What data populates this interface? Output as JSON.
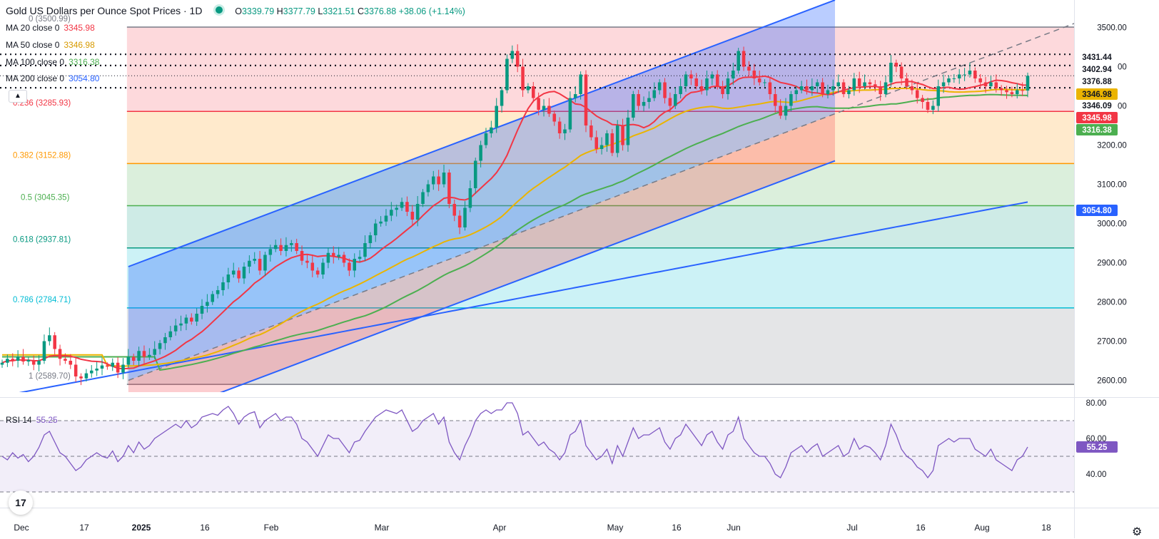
{
  "header": {
    "title": "Gold US Dollars per Ounce Spot Prices · 1D",
    "open_k": "O",
    "open": "3339.79",
    "high_k": "H",
    "high": "3377.79",
    "low_k": "L",
    "low": "3321.51",
    "close_k": "C",
    "close": "3376.88",
    "change": "+38.06 (+1.14%)"
  },
  "moving_averages": [
    {
      "name": "MA 20 close 0",
      "value": "3345.98",
      "color": "#f23645"
    },
    {
      "name": "MA 50 close 0",
      "value": "3346.98",
      "color": "#ebb400"
    },
    {
      "name": "MA 100 close 0",
      "value": "3316.38",
      "color": "#4caf50"
    },
    {
      "name": "MA 200 close 0",
      "value": "3054.80",
      "color": "#2962ff"
    }
  ],
  "rsi": {
    "name": "RSI 14",
    "value": "55.25",
    "color": "#7e57c2"
  },
  "icons": {
    "collapse": "chevron-up-icon",
    "logo": "tradingview-logo-icon",
    "settings": "gear-icon"
  },
  "chart_data": {
    "type": "candlestick",
    "title": "Gold US Dollars per Ounce Spot Prices · 1D",
    "y_ticks": [
      "3500.00",
      "3400.00",
      "3300.00",
      "3200.00",
      "3100.00",
      "3000.00",
      "2900.00",
      "2800.00",
      "2700.00",
      "2600.00"
    ],
    "y_range": [
      2570,
      3570
    ],
    "x_ticks": [
      "Dec",
      "17",
      "2025",
      "16",
      "Feb",
      "Mar",
      "Apr",
      "May",
      "16",
      "Jun",
      "Jul",
      "16",
      "Aug",
      "18"
    ],
    "fib_levels": [
      {
        "ratio": "0",
        "label": "0 (3500.99)",
        "value": 3500.99,
        "line": "#787b86",
        "fill": "#f7525f"
      },
      {
        "ratio": "0.236",
        "label": "0.236 (3285.93)",
        "value": 3285.93,
        "line": "#f23645",
        "fill": "#ff9800"
      },
      {
        "ratio": "0.382",
        "label": "0.382 (3152.88)",
        "value": 3152.88,
        "line": "#ff9800",
        "fill": "#4caf50"
      },
      {
        "ratio": "0.5",
        "label": "0.5 (3045.35)",
        "value": 3045.35,
        "line": "#4caf50",
        "fill": "#089981"
      },
      {
        "ratio": "0.618",
        "label": "0.618 (2937.81)",
        "value": 2937.81,
        "line": "#089981",
        "fill": "#00bcd4"
      },
      {
        "ratio": "0.786",
        "label": "0.786 (2784.71)",
        "value": 2784.71,
        "line": "#00bcd4",
        "fill": "#787b86"
      },
      {
        "ratio": "1",
        "label": "1 (2589.70)",
        "value": 2589.7,
        "line": "#787b86",
        "fill": null
      }
    ],
    "dotted_levels": [
      3431.44,
      3402.94,
      3346.09
    ],
    "price_labels": [
      {
        "text": "3431.44",
        "value": 3431.44,
        "bg": "#ffffff",
        "fg": "#131722"
      },
      {
        "text": "3402.94",
        "value": 3402.94,
        "bg": "#ffffff",
        "fg": "#131722"
      },
      {
        "text": "3376.88",
        "value": 3376.88,
        "bg": "#ffffff",
        "fg": "#131722"
      },
      {
        "text": "3346.98",
        "value": 3346.98,
        "bg": "#ebb400",
        "fg": "#131722"
      },
      {
        "text": "3346.09",
        "value": 3346.09,
        "bg": "#ffffff",
        "fg": "#131722"
      },
      {
        "text": "3345.98",
        "value": 3345.98,
        "bg": "#f23645",
        "fg": "#ffffff"
      },
      {
        "text": "3316.38",
        "value": 3316.38,
        "bg": "#4caf50",
        "fg": "#ffffff"
      },
      {
        "text": "3054.80",
        "value": 3054.8,
        "bg": "#2962ff",
        "fg": "#ffffff"
      }
    ],
    "closes": [
      2645,
      2655,
      2650,
      2660,
      2648,
      2652,
      2640,
      2650,
      2700,
      2715,
      2680,
      2655,
      2650,
      2640,
      2610,
      2605,
      2618,
      2625,
      2630,
      2638,
      2635,
      2645,
      2620,
      2640,
      2660,
      2650,
      2675,
      2660,
      2665,
      2680,
      2695,
      2710,
      2725,
      2740,
      2745,
      2760,
      2750,
      2770,
      2790,
      2800,
      2820,
      2830,
      2850,
      2870,
      2880,
      2860,
      2890,
      2905,
      2910,
      2880,
      2920,
      2935,
      2945,
      2930,
      2945,
      2950,
      2930,
      2905,
      2900,
      2880,
      2870,
      2900,
      2925,
      2915,
      2920,
      2900,
      2880,
      2910,
      2915,
      2950,
      2970,
      3000,
      3005,
      3020,
      3035,
      3040,
      3055,
      3030,
      3010,
      3050,
      3080,
      3100,
      3120,
      3100,
      3130,
      3050,
      3020,
      2990,
      3040,
      3090,
      3160,
      3200,
      3230,
      3245,
      3300,
      3340,
      3420,
      3440,
      3400,
      3340,
      3350,
      3320,
      3290,
      3300,
      3280,
      3260,
      3230,
      3240,
      3320,
      3330,
      3380,
      3250,
      3220,
      3190,
      3200,
      3230,
      3180,
      3250,
      3200,
      3270,
      3330,
      3300,
      3310,
      3320,
      3340,
      3360,
      3320,
      3300,
      3330,
      3350,
      3380,
      3370,
      3350,
      3340,
      3370,
      3380,
      3350,
      3330,
      3370,
      3390,
      3440,
      3400,
      3390,
      3370,
      3360,
      3360,
      3330,
      3300,
      3275,
      3300,
      3330,
      3340,
      3350,
      3340,
      3350,
      3360,
      3330,
      3340,
      3350,
      3360,
      3330,
      3340,
      3370,
      3350,
      3360,
      3355,
      3350,
      3330,
      3360,
      3410,
      3400,
      3370,
      3350,
      3340,
      3320,
      3310,
      3290,
      3300,
      3350,
      3360,
      3370,
      3370,
      3380,
      3380,
      3390,
      3370,
      3360,
      3350,
      3360,
      3345,
      3340,
      3335,
      3330,
      3340,
      3339,
      3376.88
    ],
    "rsi_values": [
      50,
      48,
      52,
      49,
      51,
      47,
      50,
      55,
      62,
      64,
      58,
      52,
      50,
      46,
      42,
      44,
      48,
      50,
      52,
      50,
      49,
      53,
      47,
      50,
      56,
      52,
      58,
      54,
      56,
      60,
      62,
      64,
      66,
      68,
      66,
      70,
      66,
      68,
      72,
      73,
      74,
      73,
      76,
      78,
      74,
      68,
      72,
      74,
      75,
      66,
      70,
      72,
      74,
      70,
      72,
      72,
      68,
      60,
      58,
      54,
      50,
      56,
      62,
      60,
      60,
      56,
      52,
      58,
      59,
      64,
      68,
      72,
      74,
      76,
      75,
      74,
      76,
      70,
      64,
      66,
      70,
      72,
      74,
      68,
      72,
      58,
      52,
      48,
      56,
      62,
      70,
      74,
      76,
      74,
      76,
      76,
      80,
      80,
      74,
      62,
      64,
      60,
      56,
      58,
      54,
      52,
      48,
      52,
      62,
      64,
      70,
      56,
      52,
      48,
      50,
      54,
      46,
      56,
      50,
      58,
      66,
      60,
      62,
      62,
      64,
      66,
      58,
      54,
      60,
      62,
      68,
      64,
      60,
      56,
      62,
      64,
      58,
      54,
      62,
      64,
      72,
      60,
      56,
      52,
      50,
      50,
      46,
      40,
      38,
      44,
      52,
      54,
      56,
      52,
      55,
      57,
      50,
      52,
      54,
      56,
      50,
      52,
      60,
      54,
      56,
      55,
      52,
      48,
      56,
      68,
      62,
      54,
      50,
      48,
      44,
      42,
      38,
      42,
      56,
      58,
      60,
      58,
      60,
      60,
      60,
      54,
      52,
      50,
      54,
      48,
      46,
      44,
      42,
      48,
      50,
      55.25
    ],
    "ma20_values": "computed from closes",
    "rsi_ticks": [
      "80.00",
      "60.00",
      "40.00"
    ],
    "rsi_levels": [
      70,
      50,
      30
    ]
  }
}
